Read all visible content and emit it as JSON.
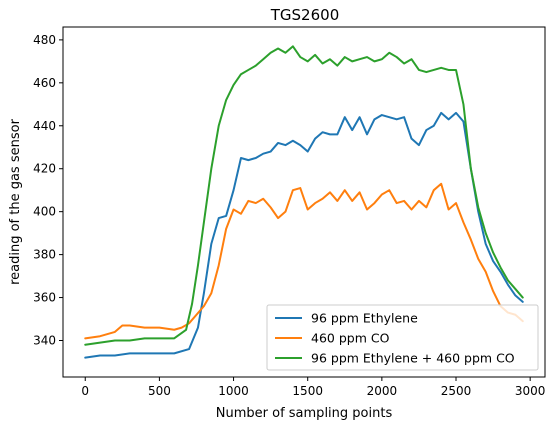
{
  "chart_data": {
    "type": "line",
    "title": "TGS2600",
    "xlabel": "Number of sampling points",
    "ylabel": "reading of the gas sensor",
    "xlim": [
      -150,
      3100
    ],
    "ylim": [
      323,
      486
    ],
    "xticks": [
      0,
      500,
      1000,
      1500,
      2000,
      2500,
      3000
    ],
    "yticks": [
      340,
      360,
      380,
      400,
      420,
      440,
      460,
      480
    ],
    "grid": false,
    "legend_position": "lower right",
    "series": [
      {
        "name": "96 ppm Ethylene",
        "color": "#1f77b4",
        "points": [
          [
            0,
            332
          ],
          [
            100,
            333
          ],
          [
            200,
            333
          ],
          [
            300,
            334
          ],
          [
            400,
            334
          ],
          [
            500,
            334
          ],
          [
            600,
            334
          ],
          [
            700,
            336
          ],
          [
            760,
            346
          ],
          [
            800,
            362
          ],
          [
            850,
            385
          ],
          [
            900,
            397
          ],
          [
            950,
            398
          ],
          [
            1000,
            410
          ],
          [
            1050,
            425
          ],
          [
            1100,
            424
          ],
          [
            1150,
            425
          ],
          [
            1200,
            427
          ],
          [
            1250,
            428
          ],
          [
            1300,
            432
          ],
          [
            1350,
            431
          ],
          [
            1400,
            433
          ],
          [
            1450,
            431
          ],
          [
            1500,
            428
          ],
          [
            1550,
            434
          ],
          [
            1600,
            437
          ],
          [
            1650,
            436
          ],
          [
            1700,
            436
          ],
          [
            1750,
            444
          ],
          [
            1800,
            438
          ],
          [
            1850,
            444
          ],
          [
            1900,
            436
          ],
          [
            1950,
            443
          ],
          [
            2000,
            445
          ],
          [
            2050,
            444
          ],
          [
            2100,
            443
          ],
          [
            2150,
            444
          ],
          [
            2200,
            434
          ],
          [
            2250,
            431
          ],
          [
            2300,
            438
          ],
          [
            2350,
            440
          ],
          [
            2400,
            446
          ],
          [
            2450,
            443
          ],
          [
            2500,
            446
          ],
          [
            2550,
            442
          ],
          [
            2600,
            420
          ],
          [
            2650,
            400
          ],
          [
            2700,
            385
          ],
          [
            2750,
            377
          ],
          [
            2800,
            372
          ],
          [
            2850,
            366
          ],
          [
            2900,
            361
          ],
          [
            2950,
            358
          ]
        ]
      },
      {
        "name": "460 ppm CO",
        "color": "#ff7f0e",
        "points": [
          [
            0,
            341
          ],
          [
            100,
            342
          ],
          [
            200,
            344
          ],
          [
            250,
            347
          ],
          [
            300,
            347
          ],
          [
            400,
            346
          ],
          [
            500,
            346
          ],
          [
            600,
            345
          ],
          [
            650,
            346
          ],
          [
            700,
            348
          ],
          [
            750,
            352
          ],
          [
            800,
            356
          ],
          [
            850,
            362
          ],
          [
            900,
            375
          ],
          [
            950,
            392
          ],
          [
            1000,
            401
          ],
          [
            1050,
            399
          ],
          [
            1100,
            405
          ],
          [
            1150,
            404
          ],
          [
            1200,
            406
          ],
          [
            1250,
            402
          ],
          [
            1300,
            397
          ],
          [
            1350,
            400
          ],
          [
            1400,
            410
          ],
          [
            1450,
            411
          ],
          [
            1500,
            401
          ],
          [
            1550,
            404
          ],
          [
            1600,
            406
          ],
          [
            1650,
            409
          ],
          [
            1700,
            405
          ],
          [
            1750,
            410
          ],
          [
            1800,
            405
          ],
          [
            1850,
            409
          ],
          [
            1900,
            401
          ],
          [
            1950,
            404
          ],
          [
            2000,
            408
          ],
          [
            2050,
            410
          ],
          [
            2100,
            404
          ],
          [
            2150,
            405
          ],
          [
            2200,
            401
          ],
          [
            2250,
            405
          ],
          [
            2300,
            402
          ],
          [
            2350,
            410
          ],
          [
            2400,
            413
          ],
          [
            2450,
            401
          ],
          [
            2500,
            404
          ],
          [
            2550,
            395
          ],
          [
            2600,
            387
          ],
          [
            2650,
            378
          ],
          [
            2700,
            372
          ],
          [
            2750,
            363
          ],
          [
            2800,
            356
          ],
          [
            2850,
            353
          ],
          [
            2900,
            352
          ],
          [
            2950,
            349
          ]
        ]
      },
      {
        "name": "96 ppm Ethylene + 460 ppm CO",
        "color": "#2ca02c",
        "points": [
          [
            0,
            338
          ],
          [
            100,
            339
          ],
          [
            200,
            340
          ],
          [
            300,
            340
          ],
          [
            400,
            341
          ],
          [
            500,
            341
          ],
          [
            600,
            341
          ],
          [
            680,
            345
          ],
          [
            720,
            357
          ],
          [
            760,
            375
          ],
          [
            800,
            395
          ],
          [
            850,
            420
          ],
          [
            900,
            440
          ],
          [
            950,
            452
          ],
          [
            1000,
            459
          ],
          [
            1050,
            464
          ],
          [
            1100,
            466
          ],
          [
            1150,
            468
          ],
          [
            1200,
            471
          ],
          [
            1250,
            474
          ],
          [
            1300,
            476
          ],
          [
            1350,
            474
          ],
          [
            1400,
            477
          ],
          [
            1450,
            472
          ],
          [
            1500,
            470
          ],
          [
            1550,
            473
          ],
          [
            1600,
            469
          ],
          [
            1650,
            471
          ],
          [
            1700,
            468
          ],
          [
            1750,
            472
          ],
          [
            1800,
            470
          ],
          [
            1850,
            471
          ],
          [
            1900,
            472
          ],
          [
            1950,
            470
          ],
          [
            2000,
            471
          ],
          [
            2050,
            474
          ],
          [
            2100,
            472
          ],
          [
            2150,
            469
          ],
          [
            2200,
            471
          ],
          [
            2250,
            466
          ],
          [
            2300,
            465
          ],
          [
            2350,
            466
          ],
          [
            2400,
            467
          ],
          [
            2450,
            466
          ],
          [
            2500,
            466
          ],
          [
            2550,
            450
          ],
          [
            2600,
            420
          ],
          [
            2650,
            402
          ],
          [
            2700,
            390
          ],
          [
            2750,
            381
          ],
          [
            2800,
            374
          ],
          [
            2850,
            368
          ],
          [
            2900,
            364
          ],
          [
            2950,
            360
          ]
        ]
      }
    ]
  }
}
